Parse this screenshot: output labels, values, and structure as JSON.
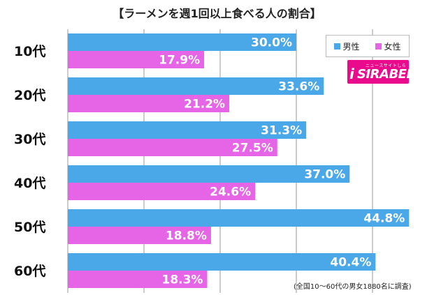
{
  "chart_data": {
    "type": "bar",
    "orientation": "horizontal",
    "title": "【ラーメンを週1回以上食べる人の割合】",
    "categories": [
      "10代",
      "20代",
      "30代",
      "40代",
      "50代",
      "60代"
    ],
    "series": [
      {
        "name": "男性",
        "color": "#4aa8e8",
        "values": [
          30.0,
          33.6,
          31.3,
          37.0,
          44.8,
          40.4
        ]
      },
      {
        "name": "女性",
        "color": "#e664e6",
        "values": [
          17.9,
          21.2,
          27.5,
          24.6,
          18.8,
          18.3
        ]
      }
    ],
    "value_suffix": "%",
    "xlim": [
      0,
      50
    ],
    "grid": true,
    "legend_position": "top-right",
    "footnote": "(全国10～60代の男女1880名に調査)"
  },
  "logo": {
    "text": "SIRABEE",
    "subtext": "ニュースサイトしらべぇ",
    "mark": "i",
    "color": "#ea0a8c"
  }
}
